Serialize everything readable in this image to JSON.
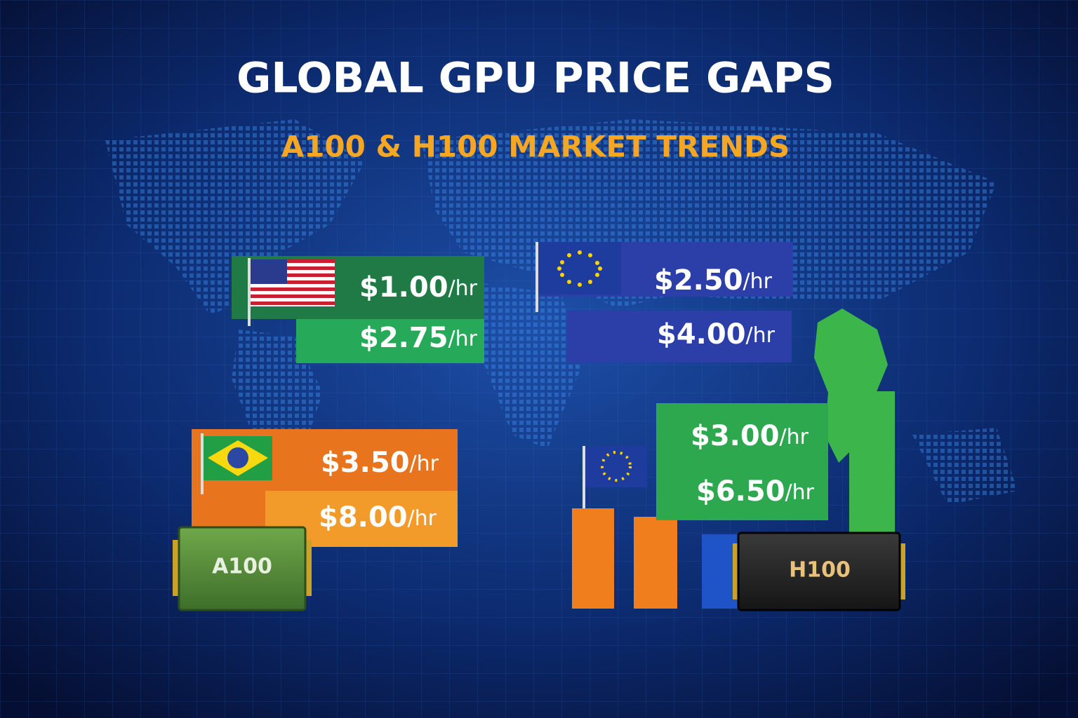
{
  "header": {
    "title": "GLOBAL GPU PRICE GAPS",
    "subtitle": "A100 & H100 MARKET TRENDS"
  },
  "cards": [
    {
      "prices": [
        {
          "price": "$1.00",
          "unit": "/hr"
        },
        {
          "price": "$2.75",
          "unit": "/hr"
        }
      ]
    },
    {
      "prices": [
        {
          "price": "$2.50",
          "unit": "/hr"
        },
        {
          "price": "$4.00",
          "unit": "/hr"
        }
      ]
    },
    {
      "prices": [
        {
          "price": "$3.50",
          "unit": "/hr"
        },
        {
          "price": "$8.00",
          "unit": "/hr"
        }
      ]
    },
    {
      "prices": [
        {
          "price": "$3.00",
          "unit": "/hr"
        },
        {
          "price": "$6.50",
          "unit": "/hr"
        }
      ]
    }
  ],
  "chips": [
    {
      "label": "A100"
    },
    {
      "label": "H100"
    }
  ]
}
